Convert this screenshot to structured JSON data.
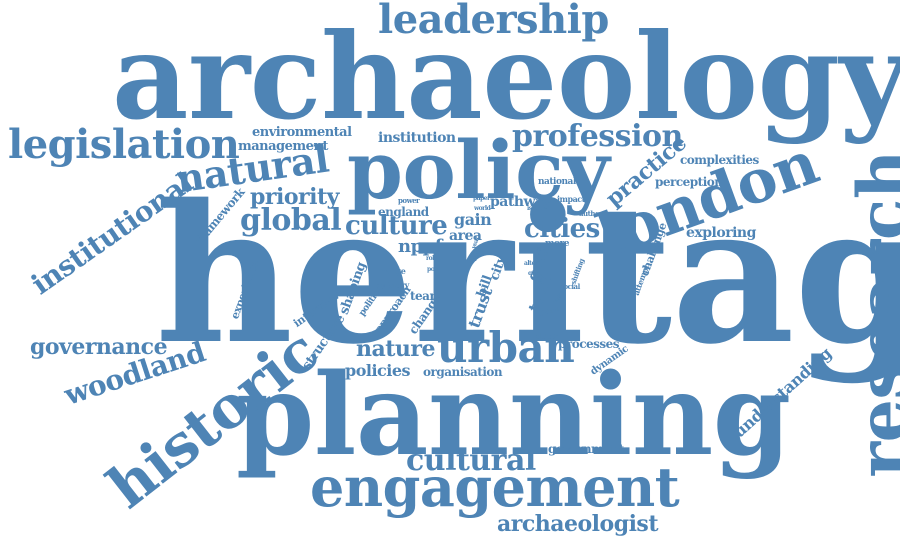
{
  "colors": {
    "word": "#4e84b5",
    "background": "#ffffff"
  },
  "words": [
    "heritage",
    "archaeology",
    "planning",
    "policy",
    "research",
    "london",
    "historic",
    "engagement",
    "leadership",
    "legislation",
    "natural",
    "urban",
    "institutional",
    "woodland",
    "governance",
    "cultural",
    "profession",
    "global",
    "culture",
    "cities",
    "priority",
    "archaeologist",
    "nature",
    "practice",
    "policies",
    "understanding",
    "environmental",
    "management",
    "institution",
    "exploring",
    "complexities",
    "perception",
    "framework",
    "england",
    "gain",
    "area",
    "nppf",
    "pathway",
    "trust",
    "town",
    "gcrf",
    "bill",
    "city",
    "structure",
    "shaping",
    "interview",
    "experience",
    "team",
    "approach",
    "change",
    "political",
    "history",
    "range",
    "organisation",
    "government",
    "processes",
    "dynamic",
    "depth",
    "york",
    "value",
    "social",
    "shifting",
    "attempt",
    "challenge",
    "more",
    "impact",
    "author",
    "national",
    "paper",
    "world",
    "issue",
    "power",
    "role",
    "post",
    "work",
    "year",
    "alter",
    "quo",
    "status"
  ]
}
